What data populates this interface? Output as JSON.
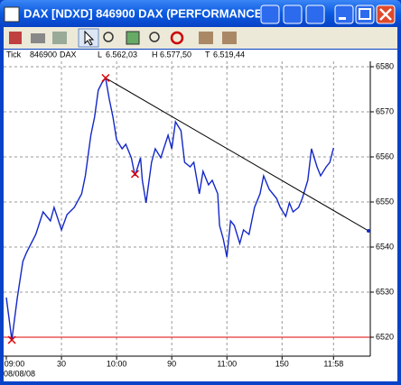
{
  "window": {
    "title": "DAX [NDXD]  846900  DAX (PERFORMANCE"
  },
  "info_bar": {
    "mode": "Tick",
    "code": "846900",
    "name": "DAX",
    "last_label": "L",
    "last": "6.562,03",
    "high_label": "H",
    "high": "6.577,50",
    "low_label": "T",
    "low": "6.519,44"
  },
  "chart_data": {
    "type": "line",
    "color": "#1428c8",
    "date": "08/08/08",
    "x": [
      0,
      3,
      6,
      9,
      11,
      16,
      20,
      24,
      26,
      30,
      33,
      37,
      41,
      43,
      46,
      48,
      50,
      52,
      54,
      56,
      58,
      60,
      63,
      65,
      68,
      70,
      73,
      74,
      76,
      79,
      81,
      84,
      88,
      90,
      92,
      95,
      97,
      100,
      102,
      105,
      107,
      110,
      112,
      115,
      116,
      118,
      120,
      122,
      124,
      127,
      129,
      132,
      135,
      138,
      140,
      143,
      147,
      149,
      152,
      154,
      156,
      159,
      161,
      164,
      166,
      169,
      171,
      174,
      176,
      178
    ],
    "values": [
      6528.8,
      6519.4,
      6528.8,
      6536.8,
      6538.8,
      6542.8,
      6547.8,
      6545.8,
      6548.8,
      6543.8,
      6547.2,
      6548.8,
      6551.8,
      6555.8,
      6564.8,
      6568.8,
      6574.8,
      6576.4,
      6577.5,
      6572.8,
      6568.8,
      6563.8,
      6561.8,
      6562.8,
      6559.8,
      6555.8,
      6559.8,
      6554.8,
      6549.8,
      6558.8,
      6561.8,
      6559.8,
      6564.8,
      6561.8,
      6567.8,
      6565.8,
      6558.8,
      6557.8,
      6558.8,
      6551.8,
      6556.8,
      6553.8,
      6554.8,
      6551.8,
      6544.8,
      6541.8,
      6537.8,
      6545.8,
      6544.8,
      6540.8,
      6543.8,
      6542.8,
      6548.8,
      6551.8,
      6555.8,
      6552.8,
      6550.8,
      6548.8,
      6546.8,
      6549.8,
      6547.8,
      6548.8,
      6550.8,
      6554.8,
      6561.8,
      6557.8,
      6555.8,
      6557.8,
      6558.8,
      6562.0
    ],
    "xlim": [
      0,
      198
    ],
    "ylim": [
      6515.8,
      6581.2
    ],
    "xticks": [
      {
        "value": 0,
        "label": "09:00"
      },
      30,
      {
        "value": 60,
        "label": "10:00"
      },
      90,
      {
        "value": 120,
        "label": "11:00"
      },
      150,
      {
        "value": 178,
        "label": "11:58"
      }
    ],
    "yticks": [
      6520,
      6530,
      6540,
      6550,
      6560,
      6570,
      6580
    ],
    "grid": true,
    "trend_line": {
      "x": [
        54,
        197
      ],
      "y": [
        6577.5,
        6543.6
      ],
      "color": "#000000"
    },
    "reference_line": {
      "value": 6520,
      "color": "#e00000"
    },
    "markers": {
      "x": [
        3,
        54,
        70
      ],
      "y": [
        6519.4,
        6577.5,
        6556.2
      ],
      "color": "#e00000"
    }
  }
}
